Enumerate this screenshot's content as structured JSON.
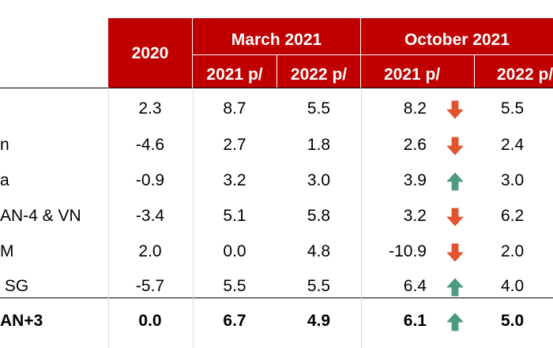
{
  "table": {
    "header": {
      "col_2020": "2020",
      "group_march": "March 2021",
      "group_october": "October 2021",
      "sub_march_2021": "2021 p/",
      "sub_march_2022": "2022 p/",
      "sub_october_2021": "2021 p/",
      "sub_october_2022": "2022 p/"
    },
    "rows": [
      {
        "label": "",
        "v2020": "2.3",
        "m2021": "8.7",
        "m2022": "5.5",
        "o2021": "8.2",
        "arrow": "down",
        "o2022": "5.5"
      },
      {
        "label": "n",
        "v2020": "-4.6",
        "m2021": "2.7",
        "m2022": "1.8",
        "o2021": "2.6",
        "arrow": "down",
        "o2022": "2.4"
      },
      {
        "label": "a",
        "v2020": "-0.9",
        "m2021": "3.2",
        "m2022": "3.0",
        "o2021": "3.9",
        "arrow": "up",
        "o2022": "3.0"
      },
      {
        "label": "AN-4 & VN",
        "v2020": "-3.4",
        "m2021": "5.1",
        "m2022": "5.8",
        "o2021": "3.2",
        "arrow": "down",
        "o2022": "6.2"
      },
      {
        "label": "M",
        "v2020": "2.0",
        "m2021": "0.0",
        "m2022": "4.8",
        "o2021": "-10.9",
        "arrow": "down",
        "o2022": "2.0"
      },
      {
        "label": " SG",
        "v2020": "-5.7",
        "m2021": "5.5",
        "m2022": "5.5",
        "o2021": "6.4",
        "arrow": "up",
        "o2022": "4.0"
      },
      {
        "label": "AN+3",
        "v2020": "0.0",
        "m2021": "6.7",
        "m2022": "4.9",
        "o2021": "6.1",
        "arrow": "up",
        "o2022": "5.0"
      }
    ]
  },
  "colors": {
    "header_bg": "#c00000",
    "arrow_down": "#e0532e",
    "arrow_up": "#4e9a7f"
  },
  "icons": {
    "down": "down-arrow-icon",
    "up": "up-arrow-icon"
  }
}
